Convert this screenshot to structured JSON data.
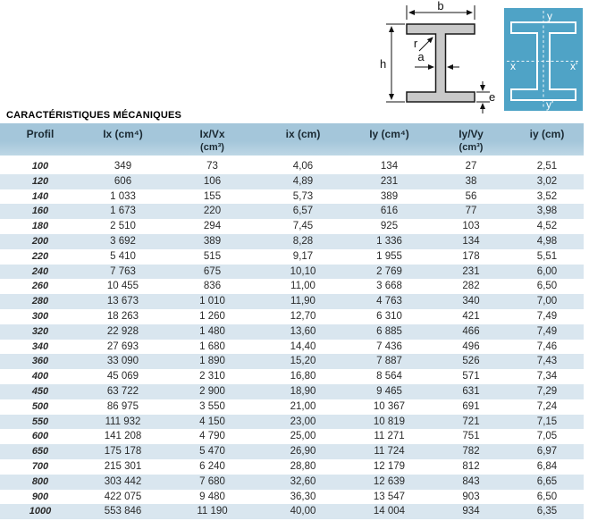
{
  "section_title": "CARACTÉRISTIQUES MÉCANIQUES",
  "diagram_beam": {
    "labels": {
      "b": "b",
      "h": "h",
      "r": "r",
      "a": "a",
      "e": "e"
    }
  },
  "diagram_axes": {
    "labels": {
      "top": "y",
      "bottom": "y'",
      "left": "x",
      "right": "x'"
    }
  },
  "table": {
    "columns": [
      {
        "label": "Profil",
        "unit": ""
      },
      {
        "label": "Ix (cm⁴)",
        "unit": ""
      },
      {
        "label": "Ix/Vx",
        "unit": "(cm³)"
      },
      {
        "label": "ix (cm)",
        "unit": ""
      },
      {
        "label": "Iy (cm⁴)",
        "unit": ""
      },
      {
        "label": "Iy/Vy",
        "unit": "(cm³)"
      },
      {
        "label": "iy (cm)",
        "unit": ""
      }
    ],
    "rows": [
      [
        "100",
        "349",
        "73",
        "4,06",
        "134",
        "27",
        "2,51"
      ],
      [
        "120",
        "606",
        "106",
        "4,89",
        "231",
        "38",
        "3,02"
      ],
      [
        "140",
        "1 033",
        "155",
        "5,73",
        "389",
        "56",
        "3,52"
      ],
      [
        "160",
        "1 673",
        "220",
        "6,57",
        "616",
        "77",
        "3,98"
      ],
      [
        "180",
        "2 510",
        "294",
        "7,45",
        "925",
        "103",
        "4,52"
      ],
      [
        "200",
        "3 692",
        "389",
        "8,28",
        "1 336",
        "134",
        "4,98"
      ],
      [
        "220",
        "5 410",
        "515",
        "9,17",
        "1 955",
        "178",
        "5,51"
      ],
      [
        "240",
        "7 763",
        "675",
        "10,10",
        "2 769",
        "231",
        "6,00"
      ],
      [
        "260",
        "10 455",
        "836",
        "11,00",
        "3 668",
        "282",
        "6,50"
      ],
      [
        "280",
        "13 673",
        "1 010",
        "11,90",
        "4 763",
        "340",
        "7,00"
      ],
      [
        "300",
        "18 263",
        "1 260",
        "12,70",
        "6 310",
        "421",
        "7,49"
      ],
      [
        "320",
        "22 928",
        "1 480",
        "13,60",
        "6 885",
        "466",
        "7,49"
      ],
      [
        "340",
        "27 693",
        "1 680",
        "14,40",
        "7 436",
        "496",
        "7,46"
      ],
      [
        "360",
        "33 090",
        "1 890",
        "15,20",
        "7 887",
        "526",
        "7,43"
      ],
      [
        "400",
        "45 069",
        "2 310",
        "16,80",
        "8 564",
        "571",
        "7,34"
      ],
      [
        "450",
        "63 722",
        "2 900",
        "18,90",
        "9 465",
        "631",
        "7,29"
      ],
      [
        "500",
        "86 975",
        "3 550",
        "21,00",
        "10 367",
        "691",
        "7,24"
      ],
      [
        "550",
        "111 932",
        "4 150",
        "23,00",
        "10 819",
        "721",
        "7,15"
      ],
      [
        "600",
        "141 208",
        "4 790",
        "25,00",
        "11 271",
        "751",
        "7,05"
      ],
      [
        "650",
        "175 178",
        "5 470",
        "26,90",
        "11 724",
        "782",
        "6,97"
      ],
      [
        "700",
        "215 301",
        "6 240",
        "28,80",
        "12 179",
        "812",
        "6,84"
      ],
      [
        "800",
        "303 442",
        "7 680",
        "32,60",
        "12 639",
        "843",
        "6,65"
      ],
      [
        "900",
        "422 075",
        "9 480",
        "36,30",
        "13 547",
        "903",
        "6,50"
      ],
      [
        "1000",
        "553 846",
        "11 190",
        "40,00",
        "14 004",
        "934",
        "6,35"
      ]
    ]
  },
  "theme": {
    "header_bg_top": "#a4c6da",
    "header_bg_bottom": "#bed7e5",
    "row_alt_bg": "#d9e6ef",
    "header_text": "#1b2a33",
    "cell_text": "#2b2b2b",
    "axes_bg": "#4fa3c6",
    "axes_fg": "#ffffff",
    "beam_fill": "#c9c9c9",
    "beam_stroke": "#1a1a1a",
    "page_bg": "#ffffff"
  }
}
